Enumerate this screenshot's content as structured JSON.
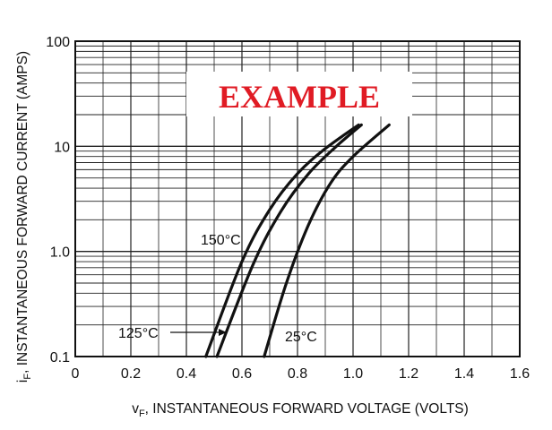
{
  "chart_data": {
    "type": "line",
    "xlabel": "v",
    "xlabel_sub": "F",
    "xlabel_rest": ", INSTANTANEOUS FORWARD VOLTAGE (VOLTS)",
    "ylabel": "i",
    "ylabel_sub": "F",
    "ylabel_rest": ", INSTANTANEOUS FORWARD CURRENT (AMPS)",
    "xlim": [
      0,
      1.6
    ],
    "ylim": [
      0.1,
      100
    ],
    "yscale": "log",
    "grid": true,
    "x_ticks": [
      0,
      0.2,
      0.4,
      0.6,
      0.8,
      1.0,
      1.2,
      1.4,
      1.6
    ],
    "x_tick_labels": [
      "0",
      "0.2",
      "0.4",
      "0.6",
      "0.8",
      "1.0",
      "1.2",
      "1.4",
      "1.6"
    ],
    "y_ticks": [
      0.1,
      1,
      10,
      100
    ],
    "y_tick_labels": [
      "0.1",
      "1.0",
      "10",
      "100"
    ],
    "watermark": "EXAMPLE",
    "series": [
      {
        "name": "150°C",
        "points": [
          [
            0.47,
            0.1
          ],
          [
            0.6,
            0.8
          ],
          [
            0.7,
            2.5
          ],
          [
            0.8,
            5.5
          ],
          [
            0.9,
            9.5
          ],
          [
            1.02,
            16
          ]
        ]
      },
      {
        "name": "125°C",
        "points": [
          [
            0.51,
            0.1
          ],
          [
            0.64,
            0.75
          ],
          [
            0.74,
            2.4
          ],
          [
            0.84,
            5.5
          ],
          [
            0.94,
            10
          ],
          [
            1.03,
            16
          ]
        ]
      },
      {
        "name": "25°C",
        "points": [
          [
            0.68,
            0.1
          ],
          [
            0.76,
            0.5
          ],
          [
            0.84,
            1.8
          ],
          [
            0.92,
            4.5
          ],
          [
            1.0,
            8
          ],
          [
            1.13,
            16
          ]
        ]
      }
    ]
  }
}
